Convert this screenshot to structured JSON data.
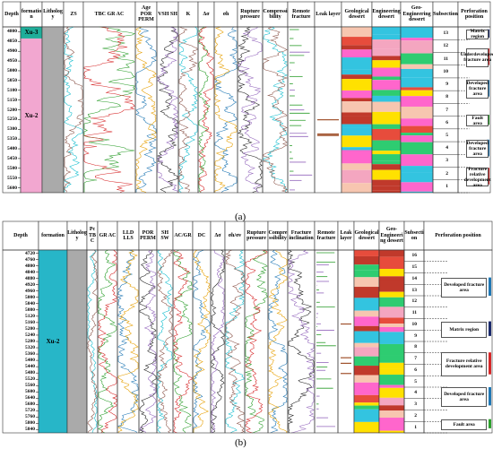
{
  "panels": [
    {
      "caption": "(a)",
      "headers": [
        "Depth",
        "formation",
        "Lithology",
        "ZS",
        "TBC GR AC",
        "Age POR PERM",
        "VSH SH",
        "K",
        "Δσ",
        "σh",
        "Rupture pressure",
        "Compressibility",
        "Remote fracture",
        "Leak layer",
        "Geological dessert",
        "Engineering dessert",
        "Geo-Engineering dessert",
        "Subsection",
        "Perforation position"
      ],
      "formations": [
        "Xu-3",
        "Xu-2"
      ],
      "depths": [
        4800,
        4850,
        4900,
        4950,
        5000,
        5050,
        5100,
        5150,
        5200,
        5250,
        5300,
        5350,
        5400,
        5450,
        5500,
        5550,
        5600
      ],
      "subsections": [
        13,
        12,
        11,
        10,
        9,
        8,
        7,
        6,
        5,
        4,
        3,
        2,
        1
      ],
      "legend": [
        {
          "label": "Matrix region",
          "color": "#1a2a6c"
        },
        {
          "label": "Underdeveloped fracture area",
          "color": "#d62728"
        },
        {
          "label": "Developed fracture area",
          "color": "#1f77b4"
        },
        {
          "label": "Fault area",
          "color": "#2ca02c"
        },
        {
          "label": "Developed fracture area",
          "color": "#1f77b4"
        },
        {
          "label": "Fracture relative development area",
          "color": "#d62728"
        }
      ]
    },
    {
      "caption": "(b)",
      "headers": [
        "Depth",
        "formation",
        "Lithology",
        "Pc TBC",
        "GR AC",
        "LLD LLS",
        "POR PERM",
        "SH SW",
        "AC/GR",
        "DC",
        "Δσ",
        "σh/σv",
        "Rupture pressure",
        "Compressibility",
        "Fracture inclination",
        "Remote fracture",
        "Leak layer",
        "Geological dessert",
        "Geo-Engineering dessert",
        "Subsection",
        "Perforation position"
      ],
      "formations": [
        "Xu-2"
      ],
      "depths": [
        4720,
        4760,
        4800,
        4840,
        4880,
        4920,
        4960,
        5000,
        5040,
        5080,
        5120,
        5160,
        5200,
        5240,
        5280,
        5320,
        5360,
        5400,
        5440,
        5480,
        5520,
        5560,
        5600,
        5640,
        5680,
        5720,
        5760,
        5800,
        5840
      ],
      "subsections": [
        16,
        15,
        14,
        13,
        12,
        11,
        10,
        9,
        8,
        7,
        6,
        5,
        4,
        3,
        2,
        1
      ],
      "legend": [
        {
          "label": "Developed fracture area",
          "color": "#1f77b4"
        },
        {
          "label": "Matrix region",
          "color": "#1a2a6c"
        },
        {
          "label": "Fracture relative development area",
          "color": "#d62728"
        },
        {
          "label": "Developed fracture area",
          "color": "#1f77b4"
        },
        {
          "label": "Fault area",
          "color": "#2ca02c"
        }
      ]
    }
  ]
}
